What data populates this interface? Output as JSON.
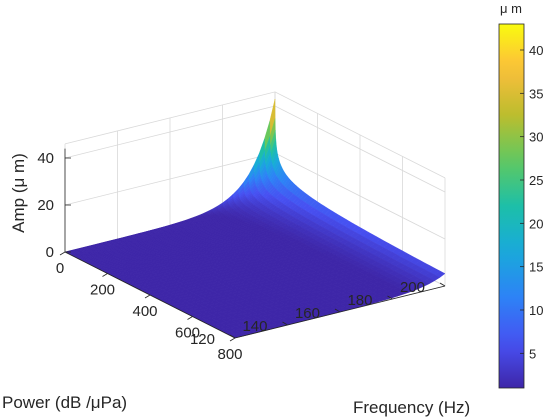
{
  "chart_data": {
    "type": "surface3d",
    "title": "",
    "xlabel": "Frequency (Hz)",
    "ylabel": "Power (dB /μPa)",
    "zlabel": "Amp (μ m)",
    "x_ticks": [
      0,
      200,
      400,
      600,
      800
    ],
    "y_ticks": [
      120,
      140,
      160,
      180,
      200
    ],
    "z_ticks": [
      0,
      20,
      40
    ],
    "xlim": [
      0,
      800
    ],
    "ylim": [
      120,
      200
    ],
    "zlim": [
      0,
      40
    ],
    "grid": true,
    "colormap": "parula",
    "colorbar": {
      "unit_label": "μ m",
      "ticks": [
        5,
        10,
        15,
        20,
        25,
        30,
        35,
        40
      ],
      "range": [
        1,
        43
      ]
    },
    "surface_peak": {
      "frequency": 0,
      "power": 200,
      "amplitude": 43
    },
    "surface_samples": [
      {
        "frequency": 0,
        "power": 200,
        "amplitude": 43
      },
      {
        "frequency": 25,
        "power": 200,
        "amplitude": 31
      },
      {
        "frequency": 50,
        "power": 200,
        "amplitude": 22
      },
      {
        "frequency": 100,
        "power": 200,
        "amplitude": 12
      },
      {
        "frequency": 200,
        "power": 200,
        "amplitude": 6
      },
      {
        "frequency": 400,
        "power": 200,
        "amplitude": 3
      },
      {
        "frequency": 800,
        "power": 200,
        "amplitude": 1.5
      },
      {
        "frequency": 0,
        "power": 180,
        "amplitude": 4.3
      },
      {
        "frequency": 0,
        "power": 160,
        "amplitude": 0.4
      },
      {
        "frequency": 800,
        "power": 120,
        "amplitude": 0
      }
    ]
  }
}
